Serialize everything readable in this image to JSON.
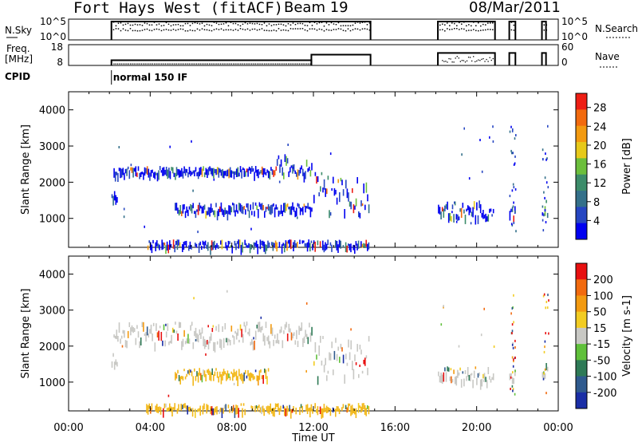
{
  "header": {
    "title": "Fort Hays West (fitACF)",
    "beam": "Beam 19",
    "date": "08/Mar/2011"
  },
  "chart_data": [
    {
      "type": "line",
      "panel": "noise",
      "left_label": "N.Sky",
      "right_label": "N.Search",
      "left_ticks": [
        "10^5",
        "10^0"
      ],
      "right_ticks": [
        "10^5",
        "10^0"
      ],
      "series": [
        {
          "name": "N.Sky",
          "segments": [
            [
              2.1,
              14.8
            ],
            [
              18.1,
              20.9
            ],
            [
              21.6,
              21.9
            ],
            [
              23.2,
              23.4
            ]
          ]
        },
        {
          "name": "N.Search",
          "segments": [
            [
              2.1,
              14.8
            ],
            [
              18.1,
              20.9
            ],
            [
              21.6,
              21.9
            ],
            [
              23.2,
              23.4
            ]
          ]
        }
      ]
    },
    {
      "type": "line",
      "panel": "frequency",
      "left_label": "Freq. [MHz]",
      "right_label": "Nave",
      "left_ticks": [
        18,
        8
      ],
      "right_ticks": [
        60,
        0
      ],
      "series": [
        {
          "name": "Freq.",
          "points": [
            [
              2.1,
              10.5
            ],
            [
              11.9,
              10.5
            ],
            [
              11.9,
              13.5
            ],
            [
              14.8,
              13.5
            ],
            [
              18.1,
              14
            ],
            [
              20.9,
              14
            ],
            [
              21.6,
              14
            ],
            [
              21.9,
              14
            ],
            [
              23.2,
              14
            ],
            [
              23.4,
              14
            ]
          ]
        },
        {
          "name": "Nave",
          "points": [
            [
              2.1,
              15
            ],
            [
              11.9,
              15
            ],
            [
              18.1,
              25
            ],
            [
              20.9,
              25
            ]
          ]
        }
      ]
    },
    {
      "type": "table",
      "panel": "cpid",
      "label": "CPID",
      "entries": [
        {
          "start": 2.1,
          "text": "normal 150 IF"
        }
      ]
    },
    {
      "type": "heatmap",
      "panel": "power",
      "ylabel": "Slant Range [km]",
      "ylim": [
        200,
        4500
      ],
      "yticks": [
        1000,
        2000,
        3000,
        4000
      ],
      "colorbar": {
        "label": "Power [dB]",
        "ticks": [
          4,
          8,
          12,
          16,
          20,
          24,
          28
        ],
        "range": [
          0,
          31
        ],
        "colors": [
          "#0000f0",
          "#2646c2",
          "#34708a",
          "#3c8c6a",
          "#6cbf3c",
          "#e7c91a",
          "#f39a10",
          "#f26a0e",
          "#ee1e14"
        ]
      },
      "echo_regions": [
        {
          "t": [
            2.1,
            2.4
          ],
          "r": [
            1550,
            1850
          ],
          "level": 0.3
        },
        {
          "t": [
            2.2,
            10.2
          ],
          "r": [
            2250,
            2450
          ],
          "level": 0.1
        },
        {
          "t": [
            10.2,
            11.9
          ],
          "r": [
            2250,
            2800
          ],
          "level": 0.15
        },
        {
          "t": [
            5.2,
            11.9
          ],
          "r": [
            1200,
            1450
          ],
          "level": 0.25
        },
        {
          "t": [
            12.0,
            14.7
          ],
          "r": [
            1150,
            2300
          ],
          "level": 0.45
        },
        {
          "t": [
            3.8,
            14.7
          ],
          "r": [
            200,
            420
          ],
          "level": 0.1
        },
        {
          "t": [
            18.1,
            20.8
          ],
          "r": [
            1050,
            1500
          ],
          "level": 0.3
        },
        {
          "t": [
            21.6,
            21.9
          ],
          "r": [
            1050,
            1400
          ],
          "level": 0.35
        },
        {
          "t": [
            23.2,
            23.5
          ],
          "r": [
            1100,
            1550
          ],
          "level": 0.4
        }
      ]
    },
    {
      "type": "heatmap",
      "panel": "velocity",
      "ylabel": "Slant Range [km]",
      "xlabel": "Time UT",
      "ylim": [
        200,
        4500
      ],
      "yticks": [
        1000,
        2000,
        3000,
        4000
      ],
      "xlim": [
        0,
        24
      ],
      "xticks": [
        "00:00",
        "04:00",
        "08:00",
        "12:00",
        "16:00",
        "20:00",
        "00:00"
      ],
      "colorbar": {
        "label": "Velocity [m s-1]",
        "ticks": [
          "200",
          "100",
          "50",
          "15",
          "-15",
          "-50",
          "-100",
          "-200"
        ],
        "colors": [
          "#1a2ea6",
          "#2f5a8e",
          "#2e7a56",
          "#5fc03a",
          "#c8c8c4",
          "#f2cc22",
          "#f39a10",
          "#f26a0e",
          "#e81010"
        ]
      },
      "echo_regions": [
        {
          "t": [
            2.1,
            2.4
          ],
          "r": [
            1550,
            1850
          ],
          "velocity": "gray"
        },
        {
          "t": [
            2.2,
            11.9
          ],
          "r": [
            2100,
            2700
          ],
          "velocity": "gray"
        },
        {
          "t": [
            5.2,
            9.8
          ],
          "r": [
            1150,
            1400
          ],
          "velocity": "orange"
        },
        {
          "t": [
            12.0,
            14.7
          ],
          "r": [
            1150,
            2300
          ],
          "velocity": "gray"
        },
        {
          "t": [
            3.8,
            14.7
          ],
          "r": [
            200,
            420
          ],
          "velocity": "orange"
        },
        {
          "t": [
            18.1,
            20.8
          ],
          "r": [
            1050,
            1450
          ],
          "velocity": "gray"
        },
        {
          "t": [
            21.6,
            21.9
          ],
          "r": [
            1050,
            1400
          ],
          "velocity": "gray"
        },
        {
          "t": [
            23.2,
            23.5
          ],
          "r": [
            1100,
            1550
          ],
          "velocity": "gray"
        }
      ]
    }
  ]
}
